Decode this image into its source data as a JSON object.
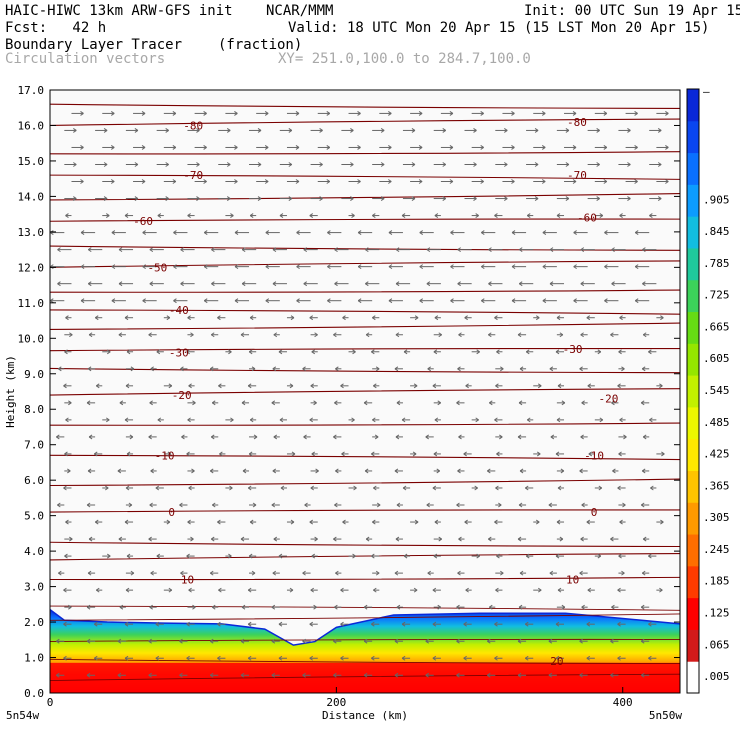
{
  "header": {
    "model": "HAIC-HIWC 13km ARW-GFS init",
    "org": "NCAR/MMM",
    "init": "Init: 00 UTC Sun 19 Apr 15",
    "fcst": "Fcst:   42 h",
    "valid": "Valid: 18 UTC Mon 20 Apr 15 (15 LST Mon 20 Apr 15)",
    "field": "Boundary Layer Tracer",
    "field_units": "(fraction)",
    "overlay": "Circulation vectors",
    "xy": "XY= 251.0,100.0 to 284.7,100.0"
  },
  "colors": {
    "contour": "#7a0000",
    "vector": "#666666",
    "colorbar": [
      "#ffffff",
      "#d21a1a",
      "#ff0000",
      "#ff3b00",
      "#ff6e00",
      "#ff9a00",
      "#ffc400",
      "#ffe800",
      "#ecf700",
      "#c2f000",
      "#95e600",
      "#66dc14",
      "#3cd25a",
      "#1fc99c",
      "#12bde0",
      "#0c9cff",
      "#0a70ff",
      "#0a46f0",
      "#0a28d8"
    ]
  },
  "chart_data": {
    "type": "heatmap",
    "title": "Boundary Layer Tracer",
    "units": "(fraction)",
    "xlabel": "Distance (km)",
    "ylabel": "Height (km)",
    "xlim": [
      0,
      440
    ],
    "ylim": [
      0,
      17
    ],
    "x_ticks": [
      0,
      200,
      400
    ],
    "y_ticks": [
      "0.0",
      "1.0",
      "2.0",
      "3.0",
      "4.0",
      "5.0",
      "6.0",
      "7.0",
      "8.0",
      "9.0",
      "10.0",
      "11.0",
      "12.0",
      "13.0",
      "14.0",
      "15.0",
      "16.0",
      "17.0"
    ],
    "x_endpoints": {
      "left": "5n54w",
      "right": "5n50w"
    },
    "colorbar_labels": [
      ".005",
      ".065",
      ".125",
      ".185",
      ".245",
      ".305",
      ".365",
      ".425",
      ".485",
      ".545",
      ".605",
      ".665",
      ".725",
      ".785",
      ".845",
      ".905"
    ],
    "colorbar_max_label": "–",
    "boundary_layer_top_km": [
      {
        "x": 0,
        "y": 2.35
      },
      {
        "x": 10,
        "y": 2.05
      },
      {
        "x": 40,
        "y": 2.0
      },
      {
        "x": 80,
        "y": 1.97
      },
      {
        "x": 120,
        "y": 1.95
      },
      {
        "x": 150,
        "y": 1.8
      },
      {
        "x": 170,
        "y": 1.35
      },
      {
        "x": 185,
        "y": 1.45
      },
      {
        "x": 200,
        "y": 1.85
      },
      {
        "x": 240,
        "y": 2.2
      },
      {
        "x": 300,
        "y": 2.25
      },
      {
        "x": 360,
        "y": 2.25
      },
      {
        "x": 400,
        "y": 2.1
      },
      {
        "x": 440,
        "y": 1.95
      }
    ],
    "isotherm_labels": [
      {
        "label": "-80",
        "x": 100,
        "y": 16.0
      },
      {
        "label": "-80",
        "x": 368,
        "y": 16.1
      },
      {
        "label": "-70",
        "x": 100,
        "y": 14.6
      },
      {
        "label": "-70",
        "x": 368,
        "y": 14.6
      },
      {
        "label": "-60",
        "x": 65,
        "y": 13.3
      },
      {
        "label": "-60",
        "x": 375,
        "y": 13.4
      },
      {
        "label": "-50",
        "x": 75,
        "y": 12.0
      },
      {
        "label": "-40",
        "x": 90,
        "y": 10.8
      },
      {
        "label": "-30",
        "x": 90,
        "y": 9.6
      },
      {
        "label": "-30",
        "x": 365,
        "y": 9.7
      },
      {
        "label": "-20",
        "x": 92,
        "y": 8.4
      },
      {
        "label": "-20",
        "x": 390,
        "y": 8.3
      },
      {
        "label": "-10",
        "x": 80,
        "y": 6.7
      },
      {
        "label": "-10",
        "x": 380,
        "y": 6.7
      },
      {
        "label": "0",
        "x": 85,
        "y": 5.1
      },
      {
        "label": "0",
        "x": 380,
        "y": 5.1
      },
      {
        "label": "10",
        "x": 96,
        "y": 3.2
      },
      {
        "label": "10",
        "x": 365,
        "y": 3.2
      },
      {
        "label": "20",
        "x": 354,
        "y": 0.9
      }
    ]
  }
}
